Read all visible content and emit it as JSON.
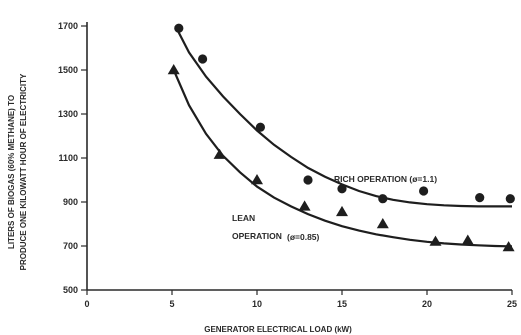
{
  "chart_data": {
    "type": "scatter",
    "xlabel": "GENERATOR ELECTRICAL LOAD (kW)",
    "ylabel_line1": "LITERS OF BIOGAS (60% METHANE) TO",
    "ylabel_line2": "PRODUCE ONE KILOWATT HOUR OF ELECTRICITY",
    "xlim": [
      0,
      25
    ],
    "ylim": [
      500,
      1700
    ],
    "xticks": [
      0,
      5,
      10,
      15,
      20,
      25
    ],
    "yticks": [
      500,
      700,
      900,
      1100,
      1300,
      1500,
      1700
    ],
    "series": [
      {
        "name": "RICH OPERATION (ø=1.1)",
        "marker": "circle",
        "points": [
          [
            5.4,
            1690
          ],
          [
            6.8,
            1550
          ],
          [
            10.2,
            1240
          ],
          [
            13.0,
            1000
          ],
          [
            15.0,
            960
          ],
          [
            17.4,
            915
          ],
          [
            19.8,
            950
          ],
          [
            23.1,
            920
          ],
          [
            24.9,
            915
          ]
        ],
        "fit": [
          [
            5.2,
            1700
          ],
          [
            6,
            1580
          ],
          [
            7,
            1470
          ],
          [
            8,
            1380
          ],
          [
            9,
            1300
          ],
          [
            10,
            1225
          ],
          [
            11,
            1160
          ],
          [
            12,
            1105
          ],
          [
            13,
            1055
          ],
          [
            14,
            1015
          ],
          [
            15,
            980
          ],
          [
            16,
            950
          ],
          [
            17,
            927
          ],
          [
            18,
            910
          ],
          [
            19,
            898
          ],
          [
            20,
            890
          ],
          [
            21,
            885
          ],
          [
            22,
            882
          ],
          [
            23,
            880
          ],
          [
            24,
            880
          ],
          [
            25,
            880
          ]
        ]
      },
      {
        "name": "LEAN OPERATION (ø=0.85)",
        "marker": "triangle",
        "points": [
          [
            5.1,
            1500
          ],
          [
            7.8,
            1115
          ],
          [
            10.0,
            1000
          ],
          [
            12.8,
            880
          ],
          [
            15.0,
            855
          ],
          [
            17.4,
            800
          ],
          [
            20.5,
            720
          ],
          [
            22.4,
            725
          ],
          [
            24.8,
            695
          ]
        ],
        "fit": [
          [
            5.1,
            1500
          ],
          [
            6,
            1340
          ],
          [
            7,
            1210
          ],
          [
            8,
            1110
          ],
          [
            9,
            1035
          ],
          [
            10,
            970
          ],
          [
            11,
            920
          ],
          [
            12,
            880
          ],
          [
            13,
            845
          ],
          [
            14,
            815
          ],
          [
            15,
            790
          ],
          [
            16,
            770
          ],
          [
            17,
            753
          ],
          [
            18,
            740
          ],
          [
            19,
            728
          ],
          [
            20,
            719
          ],
          [
            21,
            712
          ],
          [
            22,
            707
          ],
          [
            23,
            703
          ],
          [
            24,
            700
          ],
          [
            25,
            698
          ]
        ]
      }
    ],
    "annotations": {
      "rich": "RICH OPERATION (ø=1.1)",
      "lean_line1": "LEAN",
      "lean_line2": "OPERATION",
      "lean_phi": "(ø=0.85)"
    }
  }
}
